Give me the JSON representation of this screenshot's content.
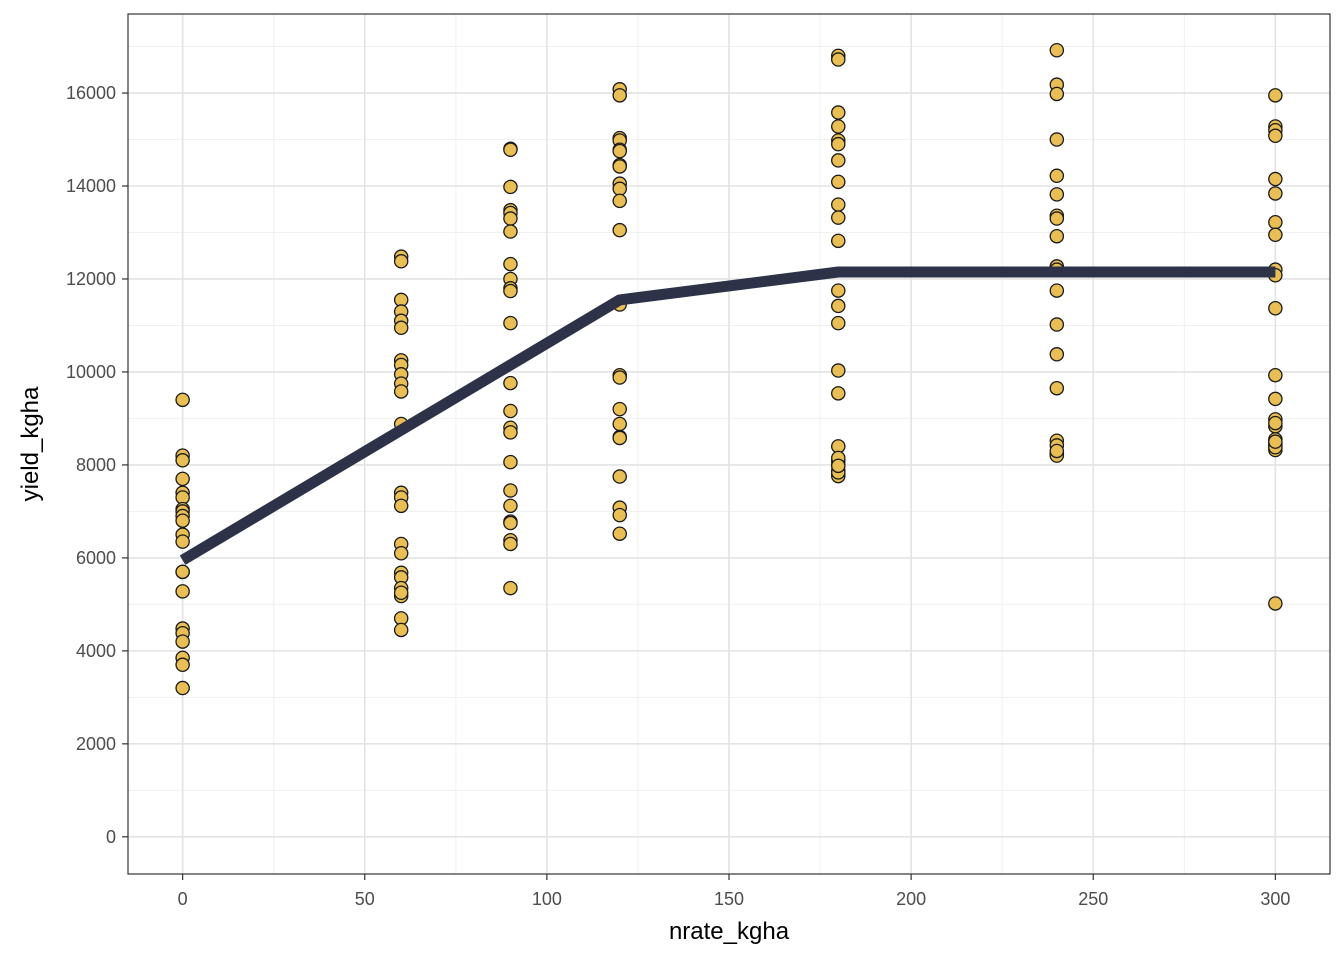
{
  "chart_data": {
    "type": "scatter",
    "title": "",
    "xlabel": "nrate_kgha",
    "ylabel": "yield_kgha",
    "xlim": [
      -15,
      315
    ],
    "ylim": [
      -800,
      17700
    ],
    "x_ticks": [
      0,
      50,
      100,
      150,
      200,
      250,
      300
    ],
    "y_ticks": [
      0,
      2000,
      4000,
      6000,
      8000,
      10000,
      12000,
      14000,
      16000
    ],
    "grid": true,
    "legend": "none",
    "colors": {
      "point_fill": "#E8BE55",
      "point_stroke": "#1a1a1a",
      "line": "#2E3248",
      "grid_major": "#e3e3e3",
      "grid_minor": "#f0f0f0",
      "panel_border": "#333333"
    },
    "series": [
      {
        "kind": "points",
        "x": [
          0,
          0,
          0,
          0,
          0,
          0,
          0,
          0,
          0,
          0,
          0,
          0,
          0,
          0,
          0,
          0,
          0,
          0,
          0,
          0,
          0,
          60,
          60,
          60,
          60,
          60,
          60,
          60,
          60,
          60,
          60,
          60,
          60,
          60,
          60,
          60,
          60,
          60,
          60,
          60,
          60,
          60,
          60,
          60,
          60,
          90,
          90,
          90,
          90,
          90,
          90,
          90,
          90,
          90,
          90,
          90,
          90,
          90,
          90,
          90,
          90,
          90,
          90,
          90,
          90,
          90,
          90,
          90,
          90,
          120,
          120,
          120,
          120,
          120,
          120,
          120,
          120,
          120,
          120,
          120,
          120,
          120,
          120,
          120,
          120,
          120,
          120,
          120,
          120,
          120,
          120,
          120,
          180,
          180,
          180,
          180,
          180,
          180,
          180,
          180,
          180,
          180,
          180,
          180,
          180,
          180,
          180,
          180,
          180,
          180,
          180,
          180,
          180,
          180,
          180,
          180,
          180,
          240,
          240,
          240,
          240,
          240,
          240,
          240,
          240,
          240,
          240,
          240,
          240,
          240,
          240,
          240,
          240,
          240,
          240,
          240,
          240,
          240,
          300,
          300,
          300,
          300,
          300,
          300,
          300,
          300,
          300,
          300,
          300,
          300,
          300,
          300,
          300,
          300,
          300,
          300,
          300,
          300,
          300,
          300,
          300,
          300
        ],
        "y": [
          9400,
          8200,
          8100,
          7700,
          7400,
          7300,
          7050,
          7000,
          6900,
          6800,
          6500,
          6350,
          5700,
          5700,
          5280,
          4480,
          4380,
          4200,
          3850,
          3700,
          3200,
          12480,
          12380,
          11550,
          11300,
          11100,
          10950,
          10250,
          10150,
          9950,
          9750,
          9580,
          8880,
          7400,
          7300,
          7120,
          6300,
          6100,
          5680,
          5580,
          5350,
          5180,
          4700,
          4450,
          5250,
          14800,
          14780,
          13980,
          13480,
          13420,
          13300,
          13020,
          12320,
          12000,
          11800,
          11740,
          11050,
          9760,
          9160,
          8800,
          8700,
          8060,
          7450,
          7120,
          6780,
          6750,
          6380,
          6300,
          5350,
          16080,
          15950,
          15030,
          14980,
          14780,
          14750,
          14450,
          14420,
          14050,
          13940,
          13680,
          13050,
          11450,
          9930,
          9880,
          9200,
          8880,
          8600,
          8580,
          7750,
          7080,
          6920,
          6520,
          16800,
          16720,
          15580,
          15280,
          14980,
          14900,
          14550,
          14090,
          13600,
          13320,
          12820,
          11750,
          11420,
          11050,
          10030,
          9540,
          8400,
          8080,
          8000,
          7880,
          7780,
          7760,
          7840,
          8150,
          7980,
          16920,
          16180,
          15980,
          15000,
          14220,
          13820,
          13360,
          13300,
          12920,
          12270,
          12200,
          11750,
          11020,
          10380,
          9650,
          8520,
          8420,
          8250,
          8220,
          8200,
          8300,
          15950,
          15280,
          15200,
          15080,
          14150,
          13840,
          13220,
          12950,
          12200,
          12080,
          11370,
          9930,
          9420,
          8980,
          8830,
          8550,
          8480,
          8440,
          8400,
          8320,
          5020,
          8380,
          8900,
          8500
        ]
      },
      {
        "kind": "line",
        "x": [
          0,
          120,
          180,
          300
        ],
        "y": [
          5950,
          11550,
          12150,
          12150
        ]
      }
    ]
  }
}
